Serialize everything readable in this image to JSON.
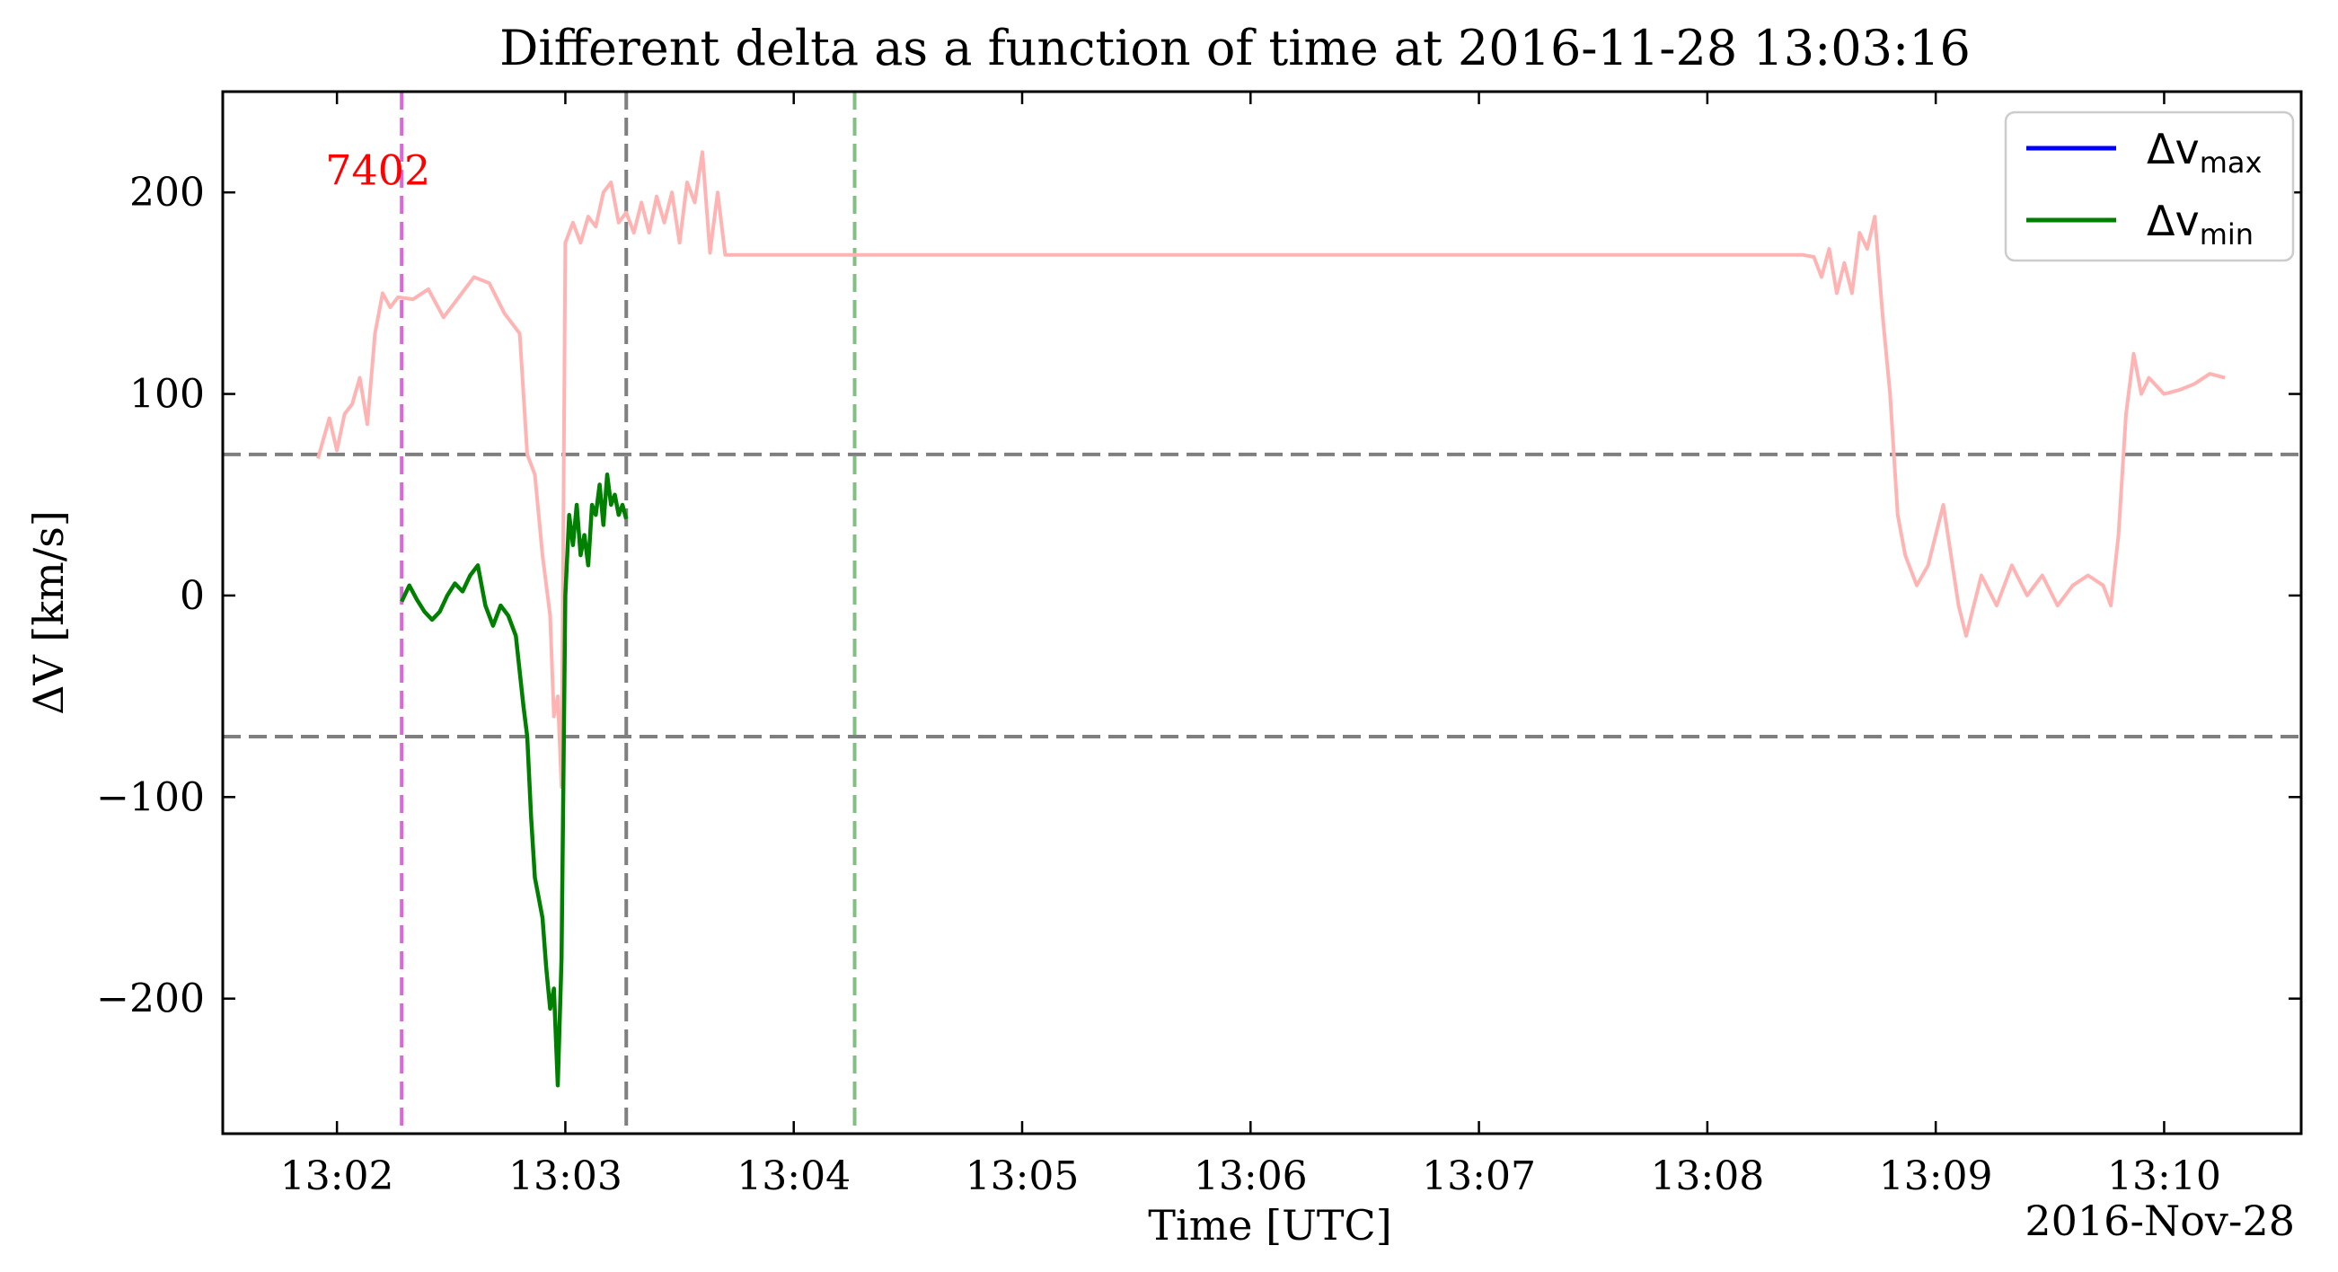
{
  "chart_data": {
    "type": "line",
    "title": "Different delta as a function of time at 2016-11-28 13:03:16",
    "xlabel": "Time [UTC]",
    "ylabel": "ΔV [km/s]",
    "date_label": "2016-Nov-28",
    "xlim": [
      "13:01:30",
      "13:10:36"
    ],
    "ylim": [
      -267,
      250
    ],
    "x_ticks": [
      "13:02",
      "13:03",
      "13:04",
      "13:05",
      "13:06",
      "13:07",
      "13:08",
      "13:09",
      "13:10"
    ],
    "y_ticks": [
      200,
      100,
      0,
      -100,
      -200
    ],
    "y_tick_labels": [
      "200",
      "100",
      "0",
      "−100",
      "−200"
    ],
    "annotation": {
      "text": "7402",
      "color": "#ff0000",
      "x": "13:02:17",
      "y": 210
    },
    "hlines": [
      {
        "y": 70,
        "color": "#7f7f7f",
        "style": "dashed"
      },
      {
        "y": -70,
        "color": "#7f7f7f",
        "style": "dashed"
      }
    ],
    "vlines": [
      {
        "x": "13:02:17",
        "color": "#dd66dd",
        "style": "dashed"
      },
      {
        "x": "13:03:16",
        "color": "#7f7f7f",
        "style": "dashed"
      },
      {
        "x": "13:04:16",
        "color": "#80c080",
        "style": "dashed"
      }
    ],
    "legend": {
      "position": "top-right",
      "entries": [
        {
          "label_base": "Δv",
          "label_sub": "max",
          "color": "#0000ff"
        },
        {
          "label_base": "Δv",
          "label_sub": "min",
          "color": "#008000"
        }
      ]
    },
    "series": [
      {
        "color": "#ffb3b3",
        "x": [
          "13:01:55",
          "13:01:58",
          "13:02:00",
          "13:02:02",
          "13:02:04",
          "13:02:06",
          "13:02:08",
          "13:02:10",
          "13:02:12",
          "13:02:14",
          "13:02:16",
          "13:02:20",
          "13:02:24",
          "13:02:28",
          "13:02:32",
          "13:02:36",
          "13:02:40",
          "13:02:44",
          "13:02:48",
          "13:02:50",
          "13:02:52",
          "13:02:54",
          "13:02:56",
          "13:02:57",
          "13:02:58",
          "13:02:59",
          "13:03:00",
          "13:03:02",
          "13:03:04",
          "13:03:06",
          "13:03:08",
          "13:03:10",
          "13:03:12",
          "13:03:14",
          "13:03:16",
          "13:03:18",
          "13:03:20",
          "13:03:22",
          "13:03:24",
          "13:03:26",
          "13:03:28",
          "13:03:30",
          "13:03:32",
          "13:03:34",
          "13:03:36",
          "13:03:38",
          "13:03:40",
          "13:03:42",
          "13:03:44",
          "13:08:25",
          "13:08:28",
          "13:08:30",
          "13:08:32",
          "13:08:34",
          "13:08:36",
          "13:08:38",
          "13:08:40",
          "13:08:42",
          "13:08:44",
          "13:08:46",
          "13:08:48",
          "13:08:50",
          "13:08:52",
          "13:08:55",
          "13:08:58",
          "13:09:00",
          "13:09:02",
          "13:09:04",
          "13:09:06",
          "13:09:08",
          "13:09:12",
          "13:09:16",
          "13:09:20",
          "13:09:24",
          "13:09:28",
          "13:09:32",
          "13:09:36",
          "13:09:40",
          "13:09:44",
          "13:09:46",
          "13:09:48",
          "13:09:50",
          "13:09:52",
          "13:09:54",
          "13:09:56",
          "13:10:00",
          "13:10:04",
          "13:10:08",
          "13:10:12",
          "13:10:16"
        ],
        "values": [
          68,
          88,
          72,
          90,
          95,
          108,
          85,
          130,
          150,
          143,
          148,
          147,
          152,
          138,
          148,
          158,
          155,
          140,
          130,
          70,
          60,
          20,
          -10,
          -60,
          -50,
          -95,
          175,
          185,
          175,
          188,
          183,
          200,
          205,
          185,
          190,
          180,
          195,
          180,
          198,
          185,
          200,
          175,
          205,
          195,
          220,
          170,
          200,
          169,
          169,
          169,
          168,
          158,
          172,
          150,
          165,
          150,
          180,
          172,
          188,
          140,
          100,
          40,
          20,
          5,
          15,
          30,
          45,
          20,
          -5,
          -20,
          10,
          -5,
          15,
          0,
          10,
          -5,
          5,
          10,
          5,
          -5,
          30,
          90,
          120,
          100,
          108,
          100,
          102,
          105,
          110,
          108
        ],
        "note": "drawn beneath the other series"
      },
      {
        "name": "Δv min",
        "color": "#008000",
        "x": [
          "13:02:17",
          "13:02:19",
          "13:02:21",
          "13:02:23",
          "13:02:25",
          "13:02:27",
          "13:02:29",
          "13:02:31",
          "13:02:33",
          "13:02:35",
          "13:02:37",
          "13:02:39",
          "13:02:41",
          "13:02:43",
          "13:02:45",
          "13:02:47",
          "13:02:49",
          "13:02:50",
          "13:02:51",
          "13:02:52",
          "13:02:53",
          "13:02:54",
          "13:02:55",
          "13:02:56",
          "13:02:57",
          "13:02:58",
          "13:02:59",
          "13:03:00",
          "13:03:01",
          "13:03:02",
          "13:03:03",
          "13:03:04",
          "13:03:05",
          "13:03:06",
          "13:03:07",
          "13:03:08",
          "13:03:09",
          "13:03:10",
          "13:03:11",
          "13:03:12",
          "13:03:13",
          "13:03:14",
          "13:03:15",
          "13:03:16"
        ],
        "values": [
          -3,
          5,
          -2,
          -8,
          -12,
          -8,
          0,
          6,
          2,
          10,
          15,
          -5,
          -15,
          -5,
          -10,
          -20,
          -55,
          -70,
          -110,
          -140,
          -150,
          -160,
          -185,
          -205,
          -195,
          -243,
          -180,
          0,
          40,
          25,
          45,
          20,
          30,
          15,
          45,
          40,
          55,
          35,
          60,
          45,
          50,
          40,
          45,
          38
        ]
      }
    ]
  }
}
